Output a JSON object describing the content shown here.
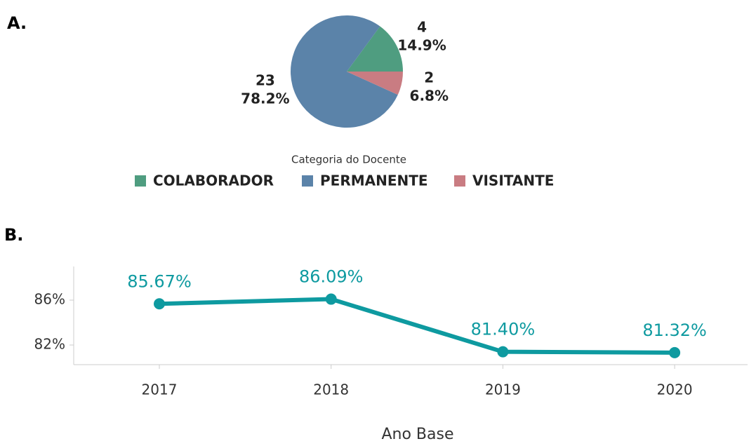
{
  "chart_data": [
    {
      "type": "pie",
      "panel_label": "A.",
      "categories": [
        "COLABORADOR",
        "PERMANENTE",
        "VISITANTE"
      ],
      "values": [
        14.9,
        78.2,
        6.8
      ],
      "value_labels": [
        "14.9%",
        "78.2%",
        "6.8%"
      ],
      "counts": [
        4,
        23,
        2
      ],
      "colors": [
        "#4f9d80",
        "#5b83a9",
        "#c97c82"
      ],
      "legend_title": "Categoria do Docente"
    },
    {
      "type": "line",
      "panel_label": "B.",
      "categories": [
        "2017",
        "2018",
        "2019",
        "2020"
      ],
      "values": [
        85.67,
        86.09,
        81.4,
        81.32
      ],
      "value_labels": [
        "85.67%",
        "86.09%",
        "81.40%",
        "81.32%"
      ],
      "color": "#0e9aa0",
      "x_label": "Ano Base",
      "ylim": [
        80.25,
        89
      ],
      "yticks": [
        {
          "value": 82,
          "label": "82%"
        },
        {
          "value": 86,
          "label": "86%"
        }
      ]
    }
  ]
}
